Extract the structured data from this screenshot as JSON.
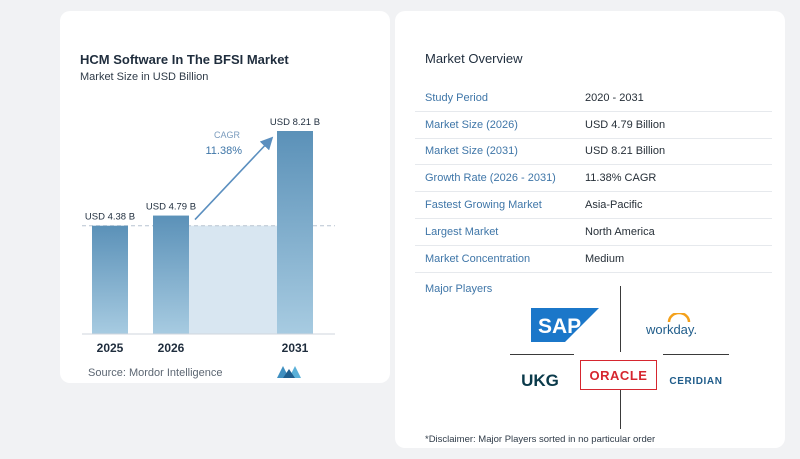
{
  "chart_data": {
    "type": "bar",
    "title": "HCM Software In The BFSI Market",
    "subtitle": "Market Size in USD Billion",
    "categories": [
      "2025",
      "2026",
      "2031"
    ],
    "values": [
      4.38,
      4.79,
      8.21
    ],
    "data_labels": [
      "USD 4.38 B",
      "USD 4.79 B",
      "USD 8.21 B"
    ],
    "cagr_label": "CAGR",
    "cagr_value": "11.38%",
    "ylim": [
      0,
      8.21
    ],
    "grid": false,
    "legend": "none",
    "colors": {
      "bar_top": "#5b91b8",
      "bar_bottom": "#a7cbe1",
      "projection_area": "#d8e6f1",
      "arrow": "#5b8fbf",
      "dashed_line": "#b7c4d1"
    }
  },
  "source": "Source: Mordor Intelligence",
  "overview": {
    "title": "Market Overview",
    "rows": [
      {
        "label": "Study Period",
        "value": "2020 - 2031"
      },
      {
        "label": "Market Size (2026)",
        "value": "USD 4.79 Billion"
      },
      {
        "label": "Market Size (2031)",
        "value": "USD 8.21 Billion"
      },
      {
        "label": "Growth Rate (2026 - 2031)",
        "value": "11.38% CAGR"
      },
      {
        "label": "Fastest Growing Market",
        "value": "Asia-Pacific"
      },
      {
        "label": "Largest Market",
        "value": "North America"
      },
      {
        "label": "Market Concentration",
        "value": "Medium"
      }
    ]
  },
  "players": {
    "title": "Major Players",
    "logos": {
      "sap": "SAP",
      "workday": "workday.",
      "ukg": "UKG",
      "oracle": "ORACLE",
      "ceridian": "CERIDIAN"
    }
  },
  "disclaimer": "*Disclaimer: Major Players sorted in no particular order",
  "colors": {
    "accent": "#3f76a8",
    "sap_blue": "#1b77c9",
    "oracle_red": "#d6262f",
    "workday_orange": "#f4a11b",
    "ukg_teal": "#0a3a4a",
    "ceridian_blue": "#1f5c8a"
  }
}
